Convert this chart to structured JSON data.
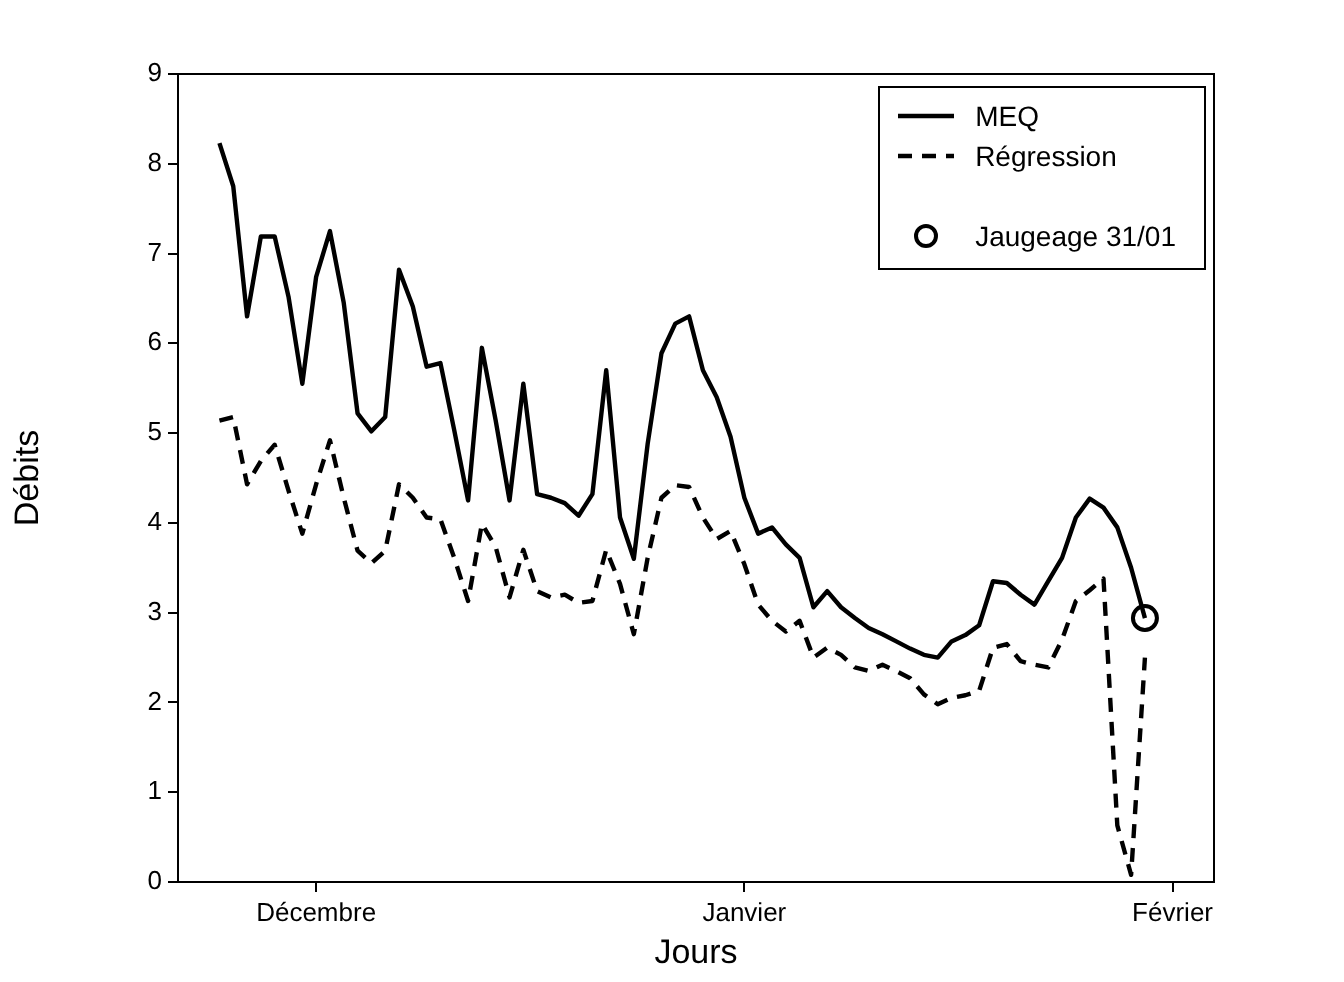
{
  "chart_data": {
    "type": "line",
    "xlabel": "Jours",
    "ylabel": "Débits",
    "categories": [
      null,
      null,
      null,
      null,
      null,
      null,
      null,
      null,
      null,
      null,
      "Décembre",
      null,
      null,
      null,
      null,
      null,
      null,
      null,
      null,
      null,
      null,
      null,
      null,
      null,
      null,
      null,
      null,
      null,
      null,
      null,
      null,
      null,
      null,
      null,
      null,
      null,
      null,
      null,
      null,
      null,
      null,
      "Janvier",
      null,
      null,
      null,
      null,
      null,
      null,
      null,
      null,
      null,
      null,
      null,
      null,
      null,
      null,
      null,
      null,
      null,
      null,
      null,
      null,
      null,
      null,
      null,
      null,
      null,
      null,
      null,
      null,
      null,
      null,
      "Février",
      null,
      null,
      null
    ],
    "ylim": [
      0,
      9
    ],
    "yticks": [
      0,
      1,
      2,
      3,
      4,
      5,
      6,
      7,
      8,
      9
    ],
    "grid": false,
    "legend": "top right",
    "series": [
      {
        "name": "MEQ",
        "color": "#000000",
        "line_style": "solid",
        "marker": "none",
        "values": [
          null,
          null,
          null,
          8.23,
          7.75,
          6.3,
          7.19,
          7.19,
          6.52,
          5.55,
          6.74,
          7.25,
          6.45,
          5.22,
          5.02,
          5.18,
          6.82,
          6.41,
          5.74,
          5.78,
          5.03,
          4.25,
          5.95,
          5.14,
          4.25,
          5.55,
          4.32,
          4.28,
          4.22,
          4.08,
          4.32,
          5.7,
          4.06,
          3.6,
          4.88,
          5.89,
          6.22,
          6.3,
          5.7,
          5.4,
          4.96,
          4.28,
          3.88,
          3.95,
          3.76,
          3.61,
          3.06,
          3.24,
          3.06,
          2.94,
          2.83,
          2.76,
          2.68,
          2.6,
          2.53,
          2.5,
          2.68,
          2.75,
          2.86,
          3.35,
          3.33,
          3.2,
          3.09,
          3.35,
          3.61,
          4.06,
          4.27,
          4.17,
          3.95,
          3.5,
          2.94,
          null,
          null,
          null,
          null,
          null
        ]
      },
      {
        "name": "Régression",
        "color": "#000000",
        "line_style": "dashed",
        "marker": "none",
        "values": [
          null,
          null,
          null,
          5.14,
          5.18,
          4.43,
          4.69,
          4.87,
          4.36,
          3.88,
          4.43,
          4.92,
          4.28,
          3.69,
          3.55,
          3.69,
          4.43,
          4.28,
          4.06,
          4.04,
          3.61,
          3.13,
          3.99,
          3.73,
          3.17,
          3.7,
          3.24,
          3.17,
          3.2,
          3.11,
          3.13,
          3.7,
          3.32,
          2.76,
          3.61,
          4.28,
          4.42,
          4.4,
          4.06,
          3.82,
          3.91,
          3.54,
          3.09,
          2.91,
          2.79,
          2.91,
          2.5,
          2.61,
          2.53,
          2.39,
          2.35,
          2.42,
          2.35,
          2.27,
          2.09,
          1.98,
          2.05,
          2.08,
          2.13,
          2.61,
          2.65,
          2.46,
          2.42,
          2.39,
          2.7,
          3.13,
          3.25,
          3.38,
          0.63,
          0.08,
          2.5,
          null,
          null,
          null,
          null,
          null
        ]
      },
      {
        "name": "Jaugeage 31/01",
        "type": "scatter",
        "color": "#000000",
        "marker": "circle",
        "values": [
          null,
          null,
          null,
          null,
          null,
          null,
          null,
          null,
          null,
          null,
          null,
          null,
          null,
          null,
          null,
          null,
          null,
          null,
          null,
          null,
          null,
          null,
          null,
          null,
          null,
          null,
          null,
          null,
          null,
          null,
          null,
          null,
          null,
          null,
          null,
          null,
          null,
          null,
          null,
          null,
          null,
          null,
          null,
          null,
          null,
          null,
          null,
          null,
          null,
          null,
          null,
          null,
          null,
          null,
          null,
          null,
          null,
          null,
          null,
          null,
          null,
          null,
          null,
          null,
          null,
          null,
          null,
          null,
          null,
          null,
          2.94,
          null,
          null,
          null,
          null,
          null
        ]
      }
    ]
  }
}
